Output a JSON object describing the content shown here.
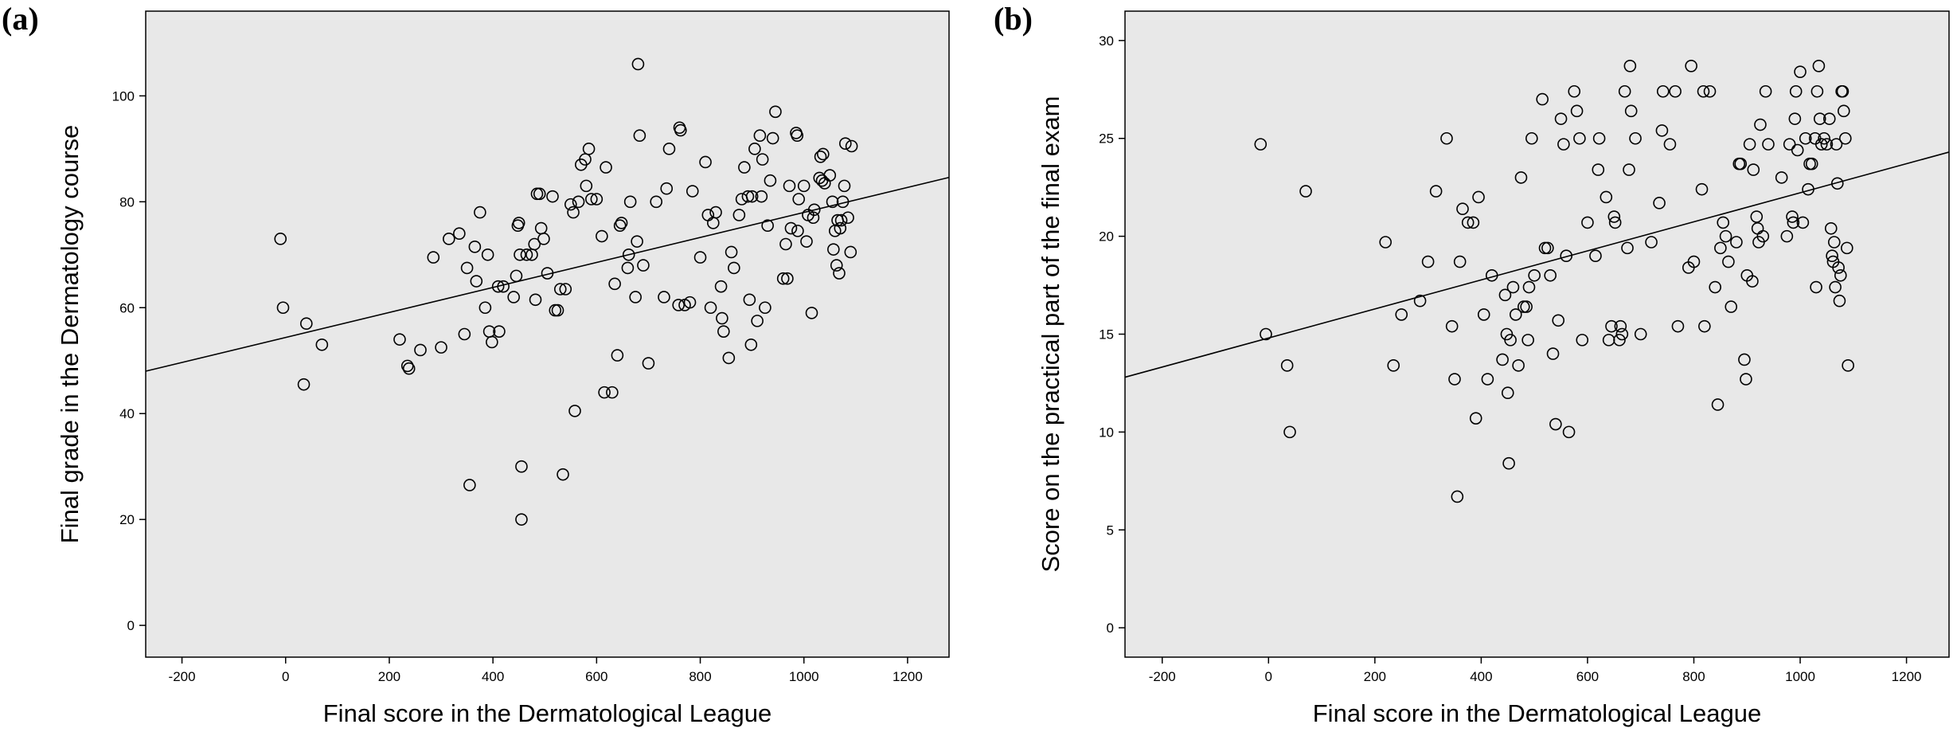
{
  "figure": {
    "panel_a_label": "(a)",
    "panel_b_label": "(b)"
  },
  "chart_data": [
    {
      "type": "scatter",
      "panel": "(a)",
      "title": "",
      "xlabel": "Final score in the Dermatological League",
      "ylabel": "Final grade in the Dermatology course",
      "xlim": [
        -270,
        1280
      ],
      "ylim": [
        -6,
        116
      ],
      "xticks": [
        -200,
        0,
        200,
        400,
        600,
        800,
        1000,
        1200
      ],
      "yticks": [
        0,
        20,
        40,
        60,
        80,
        100
      ],
      "grid": false,
      "background": "#e8e8e8",
      "marker": "open-circle",
      "fit_line": {
        "x": [
          -270,
          1280
        ],
        "y": [
          48,
          84.6
        ]
      },
      "points": [
        [
          -10,
          73
        ],
        [
          -5,
          60
        ],
        [
          35,
          45.5
        ],
        [
          40,
          57
        ],
        [
          70,
          53
        ],
        [
          220,
          54
        ],
        [
          235,
          49
        ],
        [
          238,
          48.5
        ],
        [
          260,
          52
        ],
        [
          285,
          69.5
        ],
        [
          300,
          52.5
        ],
        [
          315,
          73
        ],
        [
          335,
          74
        ],
        [
          345,
          55
        ],
        [
          350,
          67.5
        ],
        [
          355,
          26.5
        ],
        [
          365,
          71.5
        ],
        [
          368,
          65
        ],
        [
          375,
          78
        ],
        [
          385,
          60
        ],
        [
          390,
          70
        ],
        [
          393,
          55.5
        ],
        [
          398,
          53.5
        ],
        [
          410,
          64
        ],
        [
          412,
          55.5
        ],
        [
          420,
          64
        ],
        [
          440,
          62
        ],
        [
          445,
          66
        ],
        [
          448,
          75.5
        ],
        [
          450,
          76
        ],
        [
          452,
          70
        ],
        [
          455,
          30
        ],
        [
          455,
          20
        ],
        [
          465,
          70
        ],
        [
          475,
          70
        ],
        [
          480,
          72
        ],
        [
          482,
          61.5
        ],
        [
          485,
          81.5
        ],
        [
          490,
          81.5
        ],
        [
          493,
          75
        ],
        [
          498,
          73
        ],
        [
          505,
          66.5
        ],
        [
          515,
          81
        ],
        [
          520,
          59.5
        ],
        [
          525,
          59.5
        ],
        [
          530,
          63.5
        ],
        [
          535,
          28.5
        ],
        [
          540,
          63.5
        ],
        [
          550,
          79.5
        ],
        [
          555,
          78
        ],
        [
          558,
          40.5
        ],
        [
          565,
          80
        ],
        [
          570,
          87
        ],
        [
          578,
          88
        ],
        [
          580,
          83
        ],
        [
          585,
          90
        ],
        [
          590,
          80.5
        ],
        [
          600,
          80.5
        ],
        [
          610,
          73.5
        ],
        [
          615,
          44
        ],
        [
          618,
          86.5
        ],
        [
          630,
          44
        ],
        [
          635,
          64.5
        ],
        [
          640,
          51
        ],
        [
          645,
          75.5
        ],
        [
          648,
          76
        ],
        [
          660,
          67.5
        ],
        [
          662,
          70
        ],
        [
          665,
          80
        ],
        [
          675,
          62
        ],
        [
          678,
          72.5
        ],
        [
          680,
          106
        ],
        [
          683,
          92.5
        ],
        [
          690,
          68
        ],
        [
          700,
          49.5
        ],
        [
          715,
          80
        ],
        [
          730,
          62
        ],
        [
          735,
          82.5
        ],
        [
          740,
          90
        ],
        [
          758,
          60.5
        ],
        [
          760,
          94
        ],
        [
          762,
          93.5
        ],
        [
          770,
          60.5
        ],
        [
          780,
          61
        ],
        [
          785,
          82
        ],
        [
          800,
          69.5
        ],
        [
          810,
          87.5
        ],
        [
          815,
          77.5
        ],
        [
          820,
          60
        ],
        [
          825,
          76
        ],
        [
          830,
          78
        ],
        [
          840,
          64
        ],
        [
          842,
          58
        ],
        [
          845,
          55.5
        ],
        [
          855,
          50.5
        ],
        [
          860,
          70.5
        ],
        [
          865,
          67.5
        ],
        [
          875,
          77.5
        ],
        [
          880,
          80.5
        ],
        [
          885,
          86.5
        ],
        [
          892,
          81
        ],
        [
          895,
          61.5
        ],
        [
          898,
          53
        ],
        [
          900,
          81
        ],
        [
          905,
          90
        ],
        [
          910,
          57.5
        ],
        [
          915,
          92.5
        ],
        [
          918,
          81
        ],
        [
          920,
          88
        ],
        [
          925,
          60
        ],
        [
          930,
          75.5
        ],
        [
          935,
          84
        ],
        [
          940,
          92
        ],
        [
          945,
          97
        ],
        [
          960,
          65.5
        ],
        [
          965,
          72
        ],
        [
          968,
          65.5
        ],
        [
          972,
          83
        ],
        [
          975,
          75
        ],
        [
          985,
          93
        ],
        [
          987,
          92.5
        ],
        [
          988,
          74.5
        ],
        [
          990,
          80.5
        ],
        [
          1000,
          83
        ],
        [
          1005,
          72.5
        ],
        [
          1008,
          77.5
        ],
        [
          1015,
          59
        ],
        [
          1018,
          77
        ],
        [
          1020,
          78.5
        ],
        [
          1030,
          84.5
        ],
        [
          1032,
          88.5
        ],
        [
          1035,
          84
        ],
        [
          1037,
          89
        ],
        [
          1040,
          83.5
        ],
        [
          1050,
          85
        ],
        [
          1055,
          80
        ],
        [
          1057,
          71
        ],
        [
          1060,
          74.5
        ],
        [
          1063,
          68
        ],
        [
          1065,
          76.5
        ],
        [
          1068,
          66.5
        ],
        [
          1070,
          75
        ],
        [
          1072,
          76.5
        ],
        [
          1075,
          80
        ],
        [
          1078,
          83
        ],
        [
          1080,
          91
        ],
        [
          1090,
          70.5
        ],
        [
          1092,
          90.5
        ],
        [
          1085,
          77
        ]
      ]
    },
    {
      "type": "scatter",
      "panel": "(b)",
      "title": "",
      "xlabel": "Final score in the Dermatological League",
      "ylabel": "Score on the practical part of the final exam",
      "xlim": [
        -270,
        1280
      ],
      "ylim": [
        -1.5,
        31.5
      ],
      "xticks": [
        -200,
        0,
        200,
        400,
        600,
        800,
        1000,
        1200
      ],
      "yticks": [
        0,
        5,
        10,
        15,
        20,
        25,
        30
      ],
      "grid": false,
      "background": "#e8e8e8",
      "marker": "open-circle",
      "fit_line": {
        "x": [
          -270,
          1280
        ],
        "y": [
          12.8,
          24.3
        ]
      },
      "points": [
        [
          -15,
          24.7
        ],
        [
          -5,
          15
        ],
        [
          35,
          13.4
        ],
        [
          40,
          10
        ],
        [
          70,
          22.3
        ],
        [
          220,
          19.7
        ],
        [
          235,
          13.4
        ],
        [
          250,
          16
        ],
        [
          285,
          16.7
        ],
        [
          300,
          18.7
        ],
        [
          315,
          22.3
        ],
        [
          335,
          25
        ],
        [
          345,
          15.4
        ],
        [
          350,
          12.7
        ],
        [
          355,
          6.7
        ],
        [
          360,
          18.7
        ],
        [
          365,
          21.4
        ],
        [
          375,
          20.7
        ],
        [
          385,
          20.7
        ],
        [
          390,
          10.7
        ],
        [
          395,
          22
        ],
        [
          405,
          16
        ],
        [
          412,
          12.7
        ],
        [
          420,
          18
        ],
        [
          440,
          13.7
        ],
        [
          445,
          17
        ],
        [
          448,
          15
        ],
        [
          450,
          12
        ],
        [
          452,
          8.4
        ],
        [
          455,
          14.7
        ],
        [
          460,
          17.4
        ],
        [
          465,
          16
        ],
        [
          470,
          13.4
        ],
        [
          475,
          23
        ],
        [
          480,
          16.4
        ],
        [
          485,
          16.4
        ],
        [
          488,
          14.7
        ],
        [
          490,
          17.4
        ],
        [
          495,
          25
        ],
        [
          500,
          18
        ],
        [
          515,
          27
        ],
        [
          520,
          19.4
        ],
        [
          525,
          19.4
        ],
        [
          530,
          18
        ],
        [
          535,
          14
        ],
        [
          540,
          10.4
        ],
        [
          545,
          15.7
        ],
        [
          550,
          26
        ],
        [
          555,
          24.7
        ],
        [
          560,
          19
        ],
        [
          565,
          10
        ],
        [
          575,
          27.4
        ],
        [
          580,
          26.4
        ],
        [
          585,
          25
        ],
        [
          590,
          14.7
        ],
        [
          600,
          20.7
        ],
        [
          615,
          19
        ],
        [
          620,
          23.4
        ],
        [
          622,
          25
        ],
        [
          635,
          22
        ],
        [
          640,
          14.7
        ],
        [
          645,
          15.4
        ],
        [
          650,
          21
        ],
        [
          652,
          20.7
        ],
        [
          660,
          14.7
        ],
        [
          662,
          15.4
        ],
        [
          665,
          15
        ],
        [
          670,
          27.4
        ],
        [
          675,
          19.4
        ],
        [
          678,
          23.4
        ],
        [
          680,
          28.7
        ],
        [
          682,
          26.4
        ],
        [
          690,
          25
        ],
        [
          700,
          15
        ],
        [
          720,
          19.7
        ],
        [
          735,
          21.7
        ],
        [
          740,
          25.4
        ],
        [
          742,
          27.4
        ],
        [
          755,
          24.7
        ],
        [
          765,
          27.4
        ],
        [
          770,
          15.4
        ],
        [
          790,
          18.4
        ],
        [
          795,
          28.7
        ],
        [
          800,
          18.7
        ],
        [
          815,
          22.4
        ],
        [
          818,
          27.4
        ],
        [
          820,
          15.4
        ],
        [
          830,
          27.4
        ],
        [
          840,
          17.4
        ],
        [
          845,
          11.4
        ],
        [
          850,
          19.4
        ],
        [
          855,
          20.7
        ],
        [
          860,
          20
        ],
        [
          865,
          18.7
        ],
        [
          870,
          16.4
        ],
        [
          880,
          19.7
        ],
        [
          885,
          23.7
        ],
        [
          888,
          23.7
        ],
        [
          895,
          13.7
        ],
        [
          898,
          12.7
        ],
        [
          900,
          18
        ],
        [
          905,
          24.7
        ],
        [
          910,
          17.7
        ],
        [
          912,
          23.4
        ],
        [
          918,
          21
        ],
        [
          920,
          20.4
        ],
        [
          922,
          19.7
        ],
        [
          925,
          25.7
        ],
        [
          930,
          20
        ],
        [
          935,
          27.4
        ],
        [
          940,
          24.7
        ],
        [
          965,
          23
        ],
        [
          975,
          20
        ],
        [
          980,
          24.7
        ],
        [
          985,
          21
        ],
        [
          987,
          20.7
        ],
        [
          990,
          26
        ],
        [
          992,
          27.4
        ],
        [
          995,
          24.4
        ],
        [
          1000,
          28.4
        ],
        [
          1005,
          20.7
        ],
        [
          1010,
          25
        ],
        [
          1015,
          22.4
        ],
        [
          1018,
          23.7
        ],
        [
          1022,
          23.7
        ],
        [
          1028,
          25
        ],
        [
          1032,
          27.4
        ],
        [
          1035,
          28.7
        ],
        [
          1037,
          26
        ],
        [
          1040,
          24.7
        ],
        [
          1045,
          25
        ],
        [
          1050,
          24.7
        ],
        [
          1055,
          26
        ],
        [
          1058,
          20.4
        ],
        [
          1060,
          19
        ],
        [
          1062,
          18.7
        ],
        [
          1064,
          19.7
        ],
        [
          1066,
          17.4
        ],
        [
          1068,
          24.7
        ],
        [
          1070,
          22.7
        ],
        [
          1072,
          18.4
        ],
        [
          1074,
          16.7
        ],
        [
          1076,
          18
        ],
        [
          1078,
          27.4
        ],
        [
          1080,
          27.4
        ],
        [
          1082,
          26.4
        ],
        [
          1085,
          25
        ],
        [
          1088,
          19.4
        ],
        [
          1090,
          13.4
        ],
        [
          1030,
          17.4
        ]
      ]
    }
  ]
}
